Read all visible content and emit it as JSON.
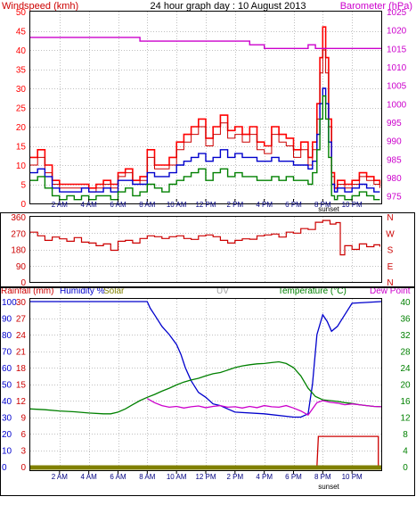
{
  "header": {
    "left_label": "Windspeed (kmh)",
    "title": "24 hour graph day : 10 August 2013",
    "right_label": "Barometer (hPa)"
  },
  "bottom_header": {
    "rainfall": "Rainfall (mm)",
    "humidity": "Humidity %",
    "solar": "Solar",
    "uv": "UV",
    "temperature": "Temperature (°C)",
    "dewpoint": "Dew Point"
  },
  "time_labels": [
    "2 AM",
    "4 AM",
    "6 AM",
    "8 AM",
    "10 AM",
    "12 PM",
    "2 PM",
    "4 PM",
    "6 PM",
    "8 PM",
    "10 PM"
  ],
  "sunset_label": "sunset",
  "colors": {
    "wind_gust": "#ff0000",
    "wind_peak": "#cc0000",
    "wind_avg": "#0000cc",
    "wind_low": "#008000",
    "barometer": "#cc00cc",
    "direction": "#cc0000",
    "humidity": "#0000cc",
    "temperature": "#008000",
    "dewpoint": "#cc00cc",
    "rain": "#cc0000",
    "solar": "#808000",
    "grid": "#c0c0c0"
  },
  "chart_data": [
    {
      "type": "line",
      "panel": "wind-barometer",
      "x_unit": "hour of day",
      "x_range": [
        0,
        24
      ],
      "y_left": {
        "label": "Windspeed (kmh)",
        "range": [
          0,
          50
        ],
        "ticks": [
          0,
          5,
          10,
          15,
          20,
          25,
          30,
          35,
          40,
          45,
          50
        ]
      },
      "y_right": {
        "label": "Barometer (hPa)",
        "range": [
          973,
          1025
        ],
        "ticks": [
          975,
          980,
          985,
          990,
          995,
          1000,
          1005,
          1010,
          1015,
          1020,
          1025
        ]
      },
      "series": [
        {
          "axis": "left",
          "style": "gust",
          "x": [
            0,
            0.5,
            1,
            1.5,
            2,
            2.5,
            3,
            3.5,
            4,
            4.5,
            5,
            5.5,
            6,
            6.5,
            7,
            7.5,
            8,
            8.5,
            9,
            9.5,
            10,
            10.5,
            11,
            11.5,
            12,
            12.5,
            13,
            13.5,
            14,
            14.5,
            15,
            15.5,
            16,
            16.5,
            17,
            17.5,
            18,
            18.5,
            19,
            19.3,
            19.6,
            19.8,
            20,
            20.2,
            20.4,
            20.6,
            20.8,
            21,
            21.5,
            22,
            22.5,
            23,
            23.5,
            23.9
          ],
          "y": [
            12,
            14,
            10,
            6,
            5,
            5,
            5,
            5,
            4,
            5,
            6,
            5,
            8,
            9,
            6,
            7,
            14,
            10,
            10,
            12,
            16,
            18,
            20,
            22,
            17,
            20,
            23,
            19,
            20,
            18,
            20,
            16,
            15,
            20,
            18,
            17,
            14,
            16,
            12,
            16,
            26,
            38,
            46,
            38,
            22,
            8,
            4,
            6,
            5,
            6,
            8,
            7,
            6,
            5
          ]
        },
        {
          "axis": "left",
          "style": "peak",
          "x": [
            0,
            0.5,
            1,
            1.5,
            2,
            2.5,
            3,
            3.5,
            4,
            4.5,
            5,
            5.5,
            6,
            6.5,
            7,
            7.5,
            8,
            8.5,
            9,
            9.5,
            10,
            10.5,
            11,
            11.5,
            12,
            12.5,
            13,
            13.5,
            14,
            14.5,
            15,
            15.5,
            16,
            16.5,
            17,
            17.5,
            18,
            18.5,
            19,
            19.3,
            19.6,
            19.8,
            20,
            20.2,
            20.4,
            20.6,
            20.8,
            21,
            21.5,
            22,
            22.5,
            23,
            23.5,
            23.9
          ],
          "y": [
            10,
            12,
            8,
            5,
            4,
            4,
            4,
            4,
            3,
            4,
            5,
            4,
            7,
            8,
            5,
            6,
            12,
            9,
            9,
            10,
            14,
            16,
            18,
            20,
            15,
            18,
            21,
            17,
            18,
            16,
            18,
            14,
            13,
            18,
            16,
            15,
            12,
            14,
            10,
            14,
            22,
            34,
            40,
            34,
            20,
            7,
            3,
            5,
            4,
            5,
            7,
            6,
            5,
            4
          ]
        },
        {
          "axis": "left",
          "style": "average",
          "x": [
            0,
            0.5,
            1,
            1.5,
            2,
            2.5,
            3,
            3.5,
            4,
            4.5,
            5,
            5.5,
            6,
            6.5,
            7,
            7.5,
            8,
            8.5,
            9,
            9.5,
            10,
            10.5,
            11,
            11.5,
            12,
            12.5,
            13,
            13.5,
            14,
            14.5,
            15,
            15.5,
            16,
            16.5,
            17,
            17.5,
            18,
            18.5,
            19,
            19.3,
            19.6,
            19.8,
            20,
            20.2,
            20.4,
            20.6,
            20.8,
            21,
            21.5,
            22,
            22.5,
            23,
            23.5,
            23.9
          ],
          "y": [
            8,
            9,
            7,
            4,
            3,
            3,
            3,
            4,
            3,
            3,
            4,
            3,
            6,
            6,
            5,
            5,
            8,
            7,
            7,
            8,
            10,
            11,
            12,
            13,
            11,
            12,
            14,
            12,
            13,
            12,
            12,
            11,
            11,
            12,
            11,
            11,
            10,
            10,
            9,
            11,
            18,
            26,
            30,
            26,
            16,
            5,
            3,
            4,
            3,
            4,
            5,
            4,
            3,
            3
          ]
        },
        {
          "axis": "left",
          "style": "low",
          "x": [
            0,
            0.5,
            1,
            1.5,
            2,
            2.5,
            3,
            3.5,
            4,
            4.5,
            5,
            5.5,
            6,
            6.5,
            7,
            7.5,
            8,
            8.5,
            9,
            9.5,
            10,
            10.5,
            11,
            11.5,
            12,
            12.5,
            13,
            13.5,
            14,
            14.5,
            15,
            15.5,
            16,
            16.5,
            17,
            17.5,
            18,
            18.5,
            19,
            19.3,
            19.6,
            19.8,
            20,
            20.2,
            20.4,
            20.6,
            20.8,
            21,
            21.5,
            22,
            22.5,
            23,
            23.5,
            23.9
          ],
          "y": [
            6,
            7,
            4,
            2,
            1,
            2,
            1,
            2,
            1,
            2,
            2,
            1,
            3,
            4,
            2,
            3,
            5,
            4,
            3,
            5,
            6,
            7,
            8,
            9,
            6,
            8,
            9,
            7,
            8,
            7,
            7,
            6,
            6,
            7,
            6,
            7,
            6,
            6,
            5,
            8,
            14,
            22,
            28,
            22,
            12,
            2,
            1,
            2,
            1,
            2,
            3,
            2,
            1,
            1
          ]
        },
        {
          "axis": "right",
          "name": "Barometer",
          "style": "barometer",
          "x": [
            0,
            0.8,
            1.3,
            3,
            5,
            7.5,
            10,
            14,
            15,
            16,
            18,
            18.7,
            19,
            19.5,
            20,
            21,
            22,
            23,
            24
          ],
          "y": [
            1018,
            1018,
            1018,
            1018,
            1018,
            1017,
            1017,
            1017,
            1016,
            1015,
            1015,
            1015,
            1016,
            1015,
            1015,
            1015,
            1015,
            1015,
            1015
          ]
        }
      ]
    },
    {
      "type": "line",
      "panel": "wind-direction",
      "x_unit": "hour of day",
      "x_range": [
        0,
        24
      ],
      "y_left": {
        "range": [
          0,
          360
        ],
        "ticks": [
          0,
          90,
          180,
          270,
          360
        ]
      },
      "y_right_labels": [
        "N",
        "W",
        "S",
        "E",
        "N"
      ],
      "series": [
        {
          "style": "direction",
          "x": [
            0,
            0.5,
            1,
            1.5,
            2,
            2.5,
            3,
            3.5,
            4,
            4.5,
            5,
            5.5,
            6,
            6.5,
            7,
            7.5,
            8,
            8.5,
            9,
            9.5,
            10,
            10.5,
            11,
            11.5,
            12,
            12.5,
            13,
            13.5,
            14,
            14.5,
            15,
            15.5,
            16,
            16.5,
            17,
            17.5,
            18,
            18.5,
            19,
            19.5,
            20,
            20.5,
            20.9,
            21.2,
            21.5,
            22,
            22.5,
            23,
            23.5,
            23.9
          ],
          "y": [
            275,
            255,
            230,
            248,
            238,
            225,
            245,
            220,
            215,
            200,
            210,
            175,
            225,
            230,
            215,
            240,
            255,
            250,
            240,
            250,
            255,
            240,
            235,
            255,
            260,
            250,
            230,
            215,
            230,
            238,
            236,
            255,
            260,
            265,
            248,
            275,
            270,
            295,
            290,
            330,
            340,
            320,
            328,
            150,
            200,
            180,
            210,
            195,
            205,
            195
          ]
        }
      ]
    },
    {
      "type": "line",
      "panel": "temperature-humidity-rain",
      "x_unit": "hour of day",
      "x_range": [
        0,
        24
      ],
      "y_left_rainfall": {
        "label": "Rainfall (mm)",
        "range": [
          0,
          30
        ],
        "ticks": [
          0,
          3,
          6,
          9,
          12,
          15,
          18,
          21,
          24,
          27,
          30
        ]
      },
      "y_left_humidity": {
        "label": "Humidity %",
        "range": [
          0,
          100
        ],
        "ticks": [
          0,
          10,
          20,
          30,
          40,
          50,
          60,
          70,
          80,
          90,
          100
        ]
      },
      "y_right": {
        "label": "Temperature (°C)",
        "range": [
          0,
          40
        ],
        "ticks": [
          0,
          4,
          8,
          12,
          16,
          20,
          24,
          28,
          32,
          36,
          40
        ]
      },
      "series": [
        {
          "name": "Humidity %",
          "axis": "humidity",
          "style": "humidity",
          "x": [
            0,
            8,
            8.2,
            8.5,
            9,
            9.5,
            10,
            10.3,
            10.6,
            11,
            11.5,
            12,
            12.5,
            13,
            13.5,
            14,
            16,
            18,
            18.5,
            19,
            19.3,
            19.6,
            20,
            20.3,
            20.6,
            21,
            21.5,
            22,
            24
          ],
          "y": [
            100,
            100,
            96,
            92,
            85,
            80,
            74,
            68,
            60,
            52,
            45,
            42,
            38,
            37,
            35,
            33,
            32,
            30,
            30,
            32,
            50,
            80,
            92,
            88,
            82,
            85,
            92,
            99,
            100
          ]
        },
        {
          "name": "Temperature (°C)",
          "axis": "temperature",
          "style": "temperature",
          "x": [
            0,
            1,
            2,
            3,
            4,
            5,
            5.5,
            6,
            6.5,
            7,
            7.5,
            8,
            8.5,
            9,
            9.5,
            10,
            10.5,
            11,
            11.5,
            12,
            12.5,
            13,
            13.5,
            14,
            14.5,
            15,
            15.5,
            16,
            16.5,
            17,
            17.5,
            18,
            18.5,
            19,
            19.5,
            20,
            20.5,
            21,
            21.5,
            22,
            22.5,
            23,
            23.5,
            24
          ],
          "y": [
            14,
            13.8,
            13.5,
            13.3,
            13,
            12.8,
            12.8,
            13.2,
            14,
            15,
            16,
            16.8,
            17.5,
            18.3,
            19,
            19.8,
            20.5,
            21,
            21.4,
            22,
            22.5,
            22.8,
            23.4,
            24,
            24.4,
            24.7,
            24.9,
            25,
            25.2,
            25.4,
            25,
            24,
            22,
            19,
            17,
            16.2,
            16,
            15.8,
            15.5,
            15.3,
            15,
            14.8,
            14.6,
            14.5
          ]
        },
        {
          "name": "Dew Point",
          "axis": "temperature",
          "style": "dewpoint",
          "x": [
            8,
            8.5,
            9,
            9.5,
            10,
            10.5,
            11,
            11.5,
            12,
            12.5,
            13,
            13.5,
            14,
            14.5,
            15,
            15.5,
            16,
            16.5,
            17,
            17.5,
            18,
            18.5,
            19,
            19.3,
            19.6,
            20,
            20.5,
            21,
            21.5,
            22,
            22.5,
            23,
            23.5,
            24
          ],
          "y": [
            16.5,
            15.5,
            14.8,
            14.4,
            14.6,
            14.2,
            14.5,
            14.7,
            14.3,
            14.6,
            14.8,
            14.4,
            14.5,
            14.2,
            14.6,
            14.3,
            14.8,
            14.5,
            14.4,
            14.8,
            14.2,
            13.5,
            12.5,
            14,
            15.5,
            16,
            15.6,
            15.4,
            15,
            15.2,
            15,
            14.8,
            14.6,
            14.5
          ]
        },
        {
          "name": "Rainfall (mm)",
          "axis": "rainfall",
          "style": "rain",
          "x": [
            0,
            19.6,
            19.7,
            23.8,
            23.8
          ],
          "y": [
            0,
            0,
            5.5,
            5.5,
            0
          ]
        },
        {
          "name": "Solar",
          "axis": "rainfall",
          "style": "solar",
          "x": [
            0,
            24
          ],
          "y": [
            0,
            0
          ]
        }
      ]
    }
  ]
}
